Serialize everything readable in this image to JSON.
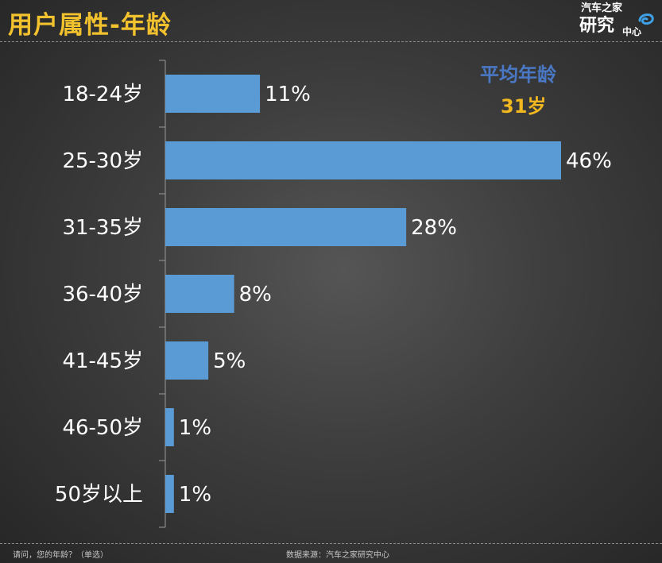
{
  "header": {
    "title": "用户属性-年龄",
    "logo": {
      "line1": "汽车之家",
      "line2": "研究",
      "line3": "中心",
      "icon": "swirl-icon"
    }
  },
  "annotation": {
    "avg_label": "平均年龄",
    "avg_value": "31岁",
    "avg_label_color": "#4a78c4",
    "avg_value_color": "#f2b81f"
  },
  "chart_data": {
    "type": "bar",
    "orientation": "horizontal",
    "categories": [
      "18-24岁",
      "25-30岁",
      "31-35岁",
      "36-40岁",
      "41-45岁",
      "46-50岁",
      "50岁以上"
    ],
    "values": [
      11,
      46,
      28,
      8,
      5,
      1,
      1
    ],
    "value_labels": [
      "11%",
      "46%",
      "28%",
      "8%",
      "5%",
      "1%",
      "1%"
    ],
    "unit": "%",
    "xlim": [
      0,
      46
    ],
    "bar_color": "#5b9bd5",
    "grid": false,
    "legend": "none"
  },
  "footer": {
    "question": "请问，您的年龄？（单选）",
    "source": "数据来源：汽车之家研究中心"
  }
}
